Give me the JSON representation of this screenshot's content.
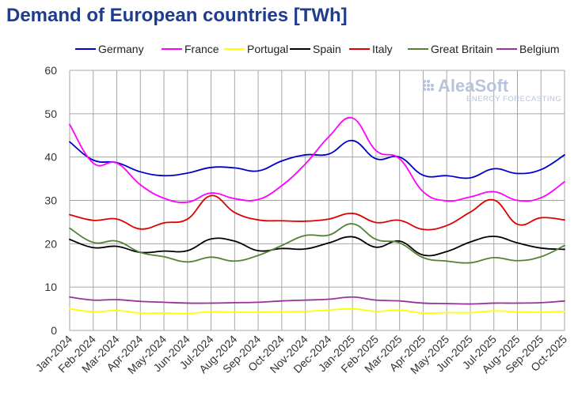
{
  "chart_data": {
    "type": "line",
    "title": "Demand of European countries [TWh]",
    "xlabel": "",
    "ylabel": "",
    "ylim": [
      0,
      60
    ],
    "yticks": [
      0,
      10,
      20,
      30,
      40,
      50,
      60
    ],
    "grid": true,
    "legend_position": "top",
    "categories": [
      "Jan-2024",
      "Feb-2024",
      "Mar-2024",
      "Apr-2024",
      "May-2024",
      "Jun-2024",
      "Jul-2024",
      "Aug-2024",
      "Sep-2024",
      "Oct-2024",
      "Nov-2024",
      "Dec-2024",
      "Jan-2025",
      "Feb-2025",
      "Mar-2025",
      "Apr-2025",
      "May-2025",
      "Jun-2025",
      "Jul-2025",
      "Aug-2025",
      "Sep-2025",
      "Oct-2025"
    ],
    "series": [
      {
        "name": "Germany",
        "color": "#0000cc",
        "values": [
          43.5,
          39.3,
          38.7,
          36.6,
          35.7,
          36.3,
          37.6,
          37.5,
          36.8,
          39.1,
          40.5,
          40.7,
          43.8,
          39.6,
          40.0,
          35.8,
          35.7,
          35.2,
          37.3,
          36.2,
          37.1,
          40.5
        ]
      },
      {
        "name": "France",
        "color": "#ff00ff",
        "values": [
          47.5,
          38.6,
          38.6,
          33.6,
          30.5,
          29.6,
          31.7,
          30.4,
          30.2,
          33.4,
          38.4,
          44.7,
          49.0,
          41.5,
          39.6,
          32.0,
          29.9,
          30.8,
          32.0,
          30.0,
          30.6,
          34.3
        ]
      },
      {
        "name": "Portugal",
        "color": "#ffff00",
        "values": [
          5.0,
          4.3,
          4.6,
          4.0,
          4.0,
          3.9,
          4.3,
          4.2,
          4.2,
          4.3,
          4.4,
          4.7,
          5.0,
          4.4,
          4.7,
          4.0,
          4.1,
          4.1,
          4.5,
          4.3,
          4.2,
          4.4
        ]
      },
      {
        "name": "Spain",
        "color": "#000000",
        "values": [
          21.0,
          19.1,
          19.4,
          18.0,
          18.3,
          18.4,
          21.1,
          20.6,
          18.4,
          18.9,
          18.8,
          20.2,
          21.6,
          19.2,
          20.6,
          17.4,
          18.2,
          20.4,
          21.7,
          20.2,
          19.0,
          18.7
        ]
      },
      {
        "name": "Italy",
        "color": "#e00000",
        "values": [
          26.7,
          25.4,
          25.7,
          23.4,
          24.8,
          25.7,
          31.1,
          27.2,
          25.5,
          25.3,
          25.2,
          25.7,
          27.0,
          24.9,
          25.4,
          23.3,
          24.2,
          27.3,
          30.1,
          24.5,
          26.0,
          25.5
        ]
      },
      {
        "name": "Great Britain",
        "color": "#548235",
        "values": [
          23.6,
          20.3,
          20.6,
          18.0,
          17.0,
          15.8,
          16.9,
          16.0,
          17.3,
          19.6,
          21.9,
          22.0,
          24.6,
          21.0,
          20.2,
          16.8,
          16.0,
          15.6,
          16.8,
          16.1,
          17.0,
          19.6
        ]
      },
      {
        "name": "Belgium",
        "color": "#993399",
        "values": [
          7.7,
          7.0,
          7.1,
          6.7,
          6.5,
          6.3,
          6.3,
          6.4,
          6.5,
          6.8,
          7.0,
          7.2,
          7.7,
          7.0,
          6.8,
          6.3,
          6.2,
          6.1,
          6.3,
          6.3,
          6.4,
          6.8
        ]
      }
    ]
  },
  "logo": {
    "name": "AleaSoft",
    "tagline": "ENERGY FORECASTING",
    "color": "#b8c4dc"
  }
}
